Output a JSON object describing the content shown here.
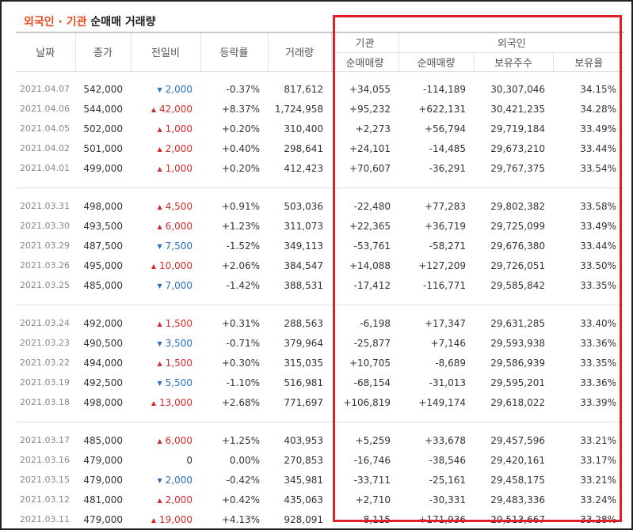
{
  "title": {
    "part1": "외국인 · 기관",
    "part2": "순매매 거래량"
  },
  "header": {
    "date": "날짜",
    "close": "종가",
    "change": "전일비",
    "rate": "등락률",
    "volume": "거래량",
    "inst_group": "기관",
    "foreign_group": "외국인",
    "inst_net": "순매매량",
    "foreign_net": "순매매량",
    "holdings": "보유주수",
    "ratio": "보유율"
  },
  "colors": {
    "up": "#d12b2b",
    "down": "#2a6fc0",
    "accent": "#e8491d",
    "highlight": "#e01f26"
  },
  "rows": [
    {
      "date": "2021.04.07",
      "close": "542,000",
      "dir": "down",
      "change": "2,000",
      "rate": "-0.37%",
      "volume": "817,612",
      "inst": "+34,055",
      "foreign": "-114,189",
      "holdings": "30,307,046",
      "ratio": "34.15%"
    },
    {
      "date": "2021.04.06",
      "close": "544,000",
      "dir": "up",
      "change": "42,000",
      "rate": "+8.37%",
      "volume": "1,724,958",
      "inst": "+95,232",
      "foreign": "+622,131",
      "holdings": "30,421,235",
      "ratio": "34.28%"
    },
    {
      "date": "2021.04.05",
      "close": "502,000",
      "dir": "up",
      "change": "1,000",
      "rate": "+0.20%",
      "volume": "310,400",
      "inst": "+2,273",
      "foreign": "+56,794",
      "holdings": "29,719,184",
      "ratio": "33.49%"
    },
    {
      "date": "2021.04.02",
      "close": "501,000",
      "dir": "up",
      "change": "2,000",
      "rate": "+0.40%",
      "volume": "298,641",
      "inst": "+24,101",
      "foreign": "-14,485",
      "holdings": "29,673,210",
      "ratio": "33.44%"
    },
    {
      "date": "2021.04.01",
      "close": "499,000",
      "dir": "up",
      "change": "1,000",
      "rate": "+0.20%",
      "volume": "412,423",
      "inst": "+70,607",
      "foreign": "-36,291",
      "holdings": "29,767,375",
      "ratio": "33.54%"
    },
    {
      "date": "2021.03.31",
      "close": "498,000",
      "dir": "up",
      "change": "4,500",
      "rate": "+0.91%",
      "volume": "503,036",
      "inst": "-22,480",
      "foreign": "+77,283",
      "holdings": "29,802,382",
      "ratio": "33.58%"
    },
    {
      "date": "2021.03.30",
      "close": "493,500",
      "dir": "up",
      "change": "6,000",
      "rate": "+1.23%",
      "volume": "311,073",
      "inst": "+22,365",
      "foreign": "+36,719",
      "holdings": "29,725,099",
      "ratio": "33.49%"
    },
    {
      "date": "2021.03.29",
      "close": "487,500",
      "dir": "down",
      "change": "7,500",
      "rate": "-1.52%",
      "volume": "349,113",
      "inst": "-53,761",
      "foreign": "-58,271",
      "holdings": "29,676,380",
      "ratio": "33.44%"
    },
    {
      "date": "2021.03.26",
      "close": "495,000",
      "dir": "up",
      "change": "10,000",
      "rate": "+2.06%",
      "volume": "384,547",
      "inst": "+14,088",
      "foreign": "+127,209",
      "holdings": "29,726,051",
      "ratio": "33.50%"
    },
    {
      "date": "2021.03.25",
      "close": "485,000",
      "dir": "down",
      "change": "7,000",
      "rate": "-1.42%",
      "volume": "388,531",
      "inst": "-17,412",
      "foreign": "-116,771",
      "holdings": "29,585,842",
      "ratio": "33.35%"
    },
    {
      "date": "2021.03.24",
      "close": "492,000",
      "dir": "up",
      "change": "1,500",
      "rate": "+0.31%",
      "volume": "288,563",
      "inst": "-6,198",
      "foreign": "+17,347",
      "holdings": "29,631,285",
      "ratio": "33.40%"
    },
    {
      "date": "2021.03.23",
      "close": "490,500",
      "dir": "down",
      "change": "3,500",
      "rate": "-0.71%",
      "volume": "379,964",
      "inst": "-25,877",
      "foreign": "+7,146",
      "holdings": "29,593,938",
      "ratio": "33.36%"
    },
    {
      "date": "2021.03.22",
      "close": "494,000",
      "dir": "up",
      "change": "1,500",
      "rate": "+0.30%",
      "volume": "315,035",
      "inst": "+10,705",
      "foreign": "-8,689",
      "holdings": "29,586,939",
      "ratio": "33.35%"
    },
    {
      "date": "2021.03.19",
      "close": "492,500",
      "dir": "down",
      "change": "5,500",
      "rate": "-1.10%",
      "volume": "516,981",
      "inst": "-68,154",
      "foreign": "-31,013",
      "holdings": "29,595,201",
      "ratio": "33.36%"
    },
    {
      "date": "2021.03.18",
      "close": "498,000",
      "dir": "up",
      "change": "13,000",
      "rate": "+2.68%",
      "volume": "771,697",
      "inst": "+106,819",
      "foreign": "+149,174",
      "holdings": "29,618,022",
      "ratio": "33.39%"
    },
    {
      "date": "2021.03.17",
      "close": "485,000",
      "dir": "up",
      "change": "6,000",
      "rate": "+1.25%",
      "volume": "403,953",
      "inst": "+5,259",
      "foreign": "+33,678",
      "holdings": "29,457,596",
      "ratio": "33.21%"
    },
    {
      "date": "2021.03.16",
      "close": "479,000",
      "dir": "none",
      "change": "0",
      "rate": "0.00%",
      "volume": "270,853",
      "inst": "-16,746",
      "foreign": "-38,546",
      "holdings": "29,420,161",
      "ratio": "33.17%"
    },
    {
      "date": "2021.03.15",
      "close": "479,000",
      "dir": "down",
      "change": "2,000",
      "rate": "-0.42%",
      "volume": "345,981",
      "inst": "-33,711",
      "foreign": "-25,161",
      "holdings": "29,458,175",
      "ratio": "33.21%"
    },
    {
      "date": "2021.03.12",
      "close": "481,000",
      "dir": "up",
      "change": "2,000",
      "rate": "+0.42%",
      "volume": "435,063",
      "inst": "+2,710",
      "foreign": "-30,331",
      "holdings": "29,483,336",
      "ratio": "33.24%"
    },
    {
      "date": "2021.03.11",
      "close": "479,000",
      "dir": "up",
      "change": "19,000",
      "rate": "+4.13%",
      "volume": "928,091",
      "inst": "-8,115",
      "foreign": "+171,936",
      "holdings": "29,513,667",
      "ratio": "33.28%"
    }
  ]
}
